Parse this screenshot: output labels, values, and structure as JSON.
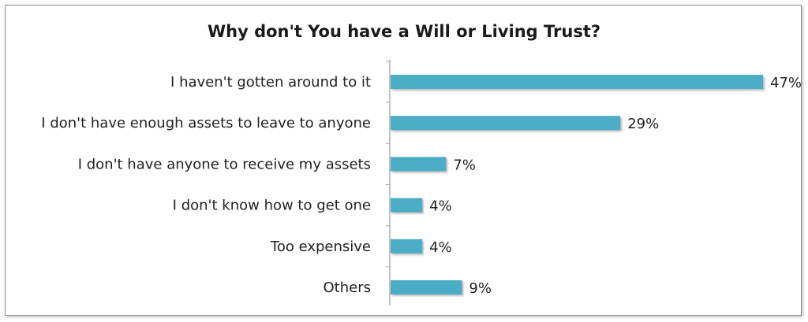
{
  "chart_data": {
    "type": "bar",
    "orientation": "horizontal",
    "title": "Why don't You have a Will or Living Trust?",
    "categories": [
      "I haven't gotten around to it",
      "I don't have enough assets to leave to anyone",
      "I don't have anyone to receive my assets",
      "I don't know how to get one",
      "Too expensive",
      "Others"
    ],
    "values": [
      47,
      29,
      7,
      4,
      4,
      9
    ],
    "value_labels": [
      "47%",
      "29%",
      "7%",
      "4%",
      "4%",
      "9%"
    ],
    "xlim": [
      0,
      47
    ],
    "grid": false,
    "legend": "none",
    "bar_color": "#4bacc6",
    "axis_color": "#a6a6a6"
  }
}
